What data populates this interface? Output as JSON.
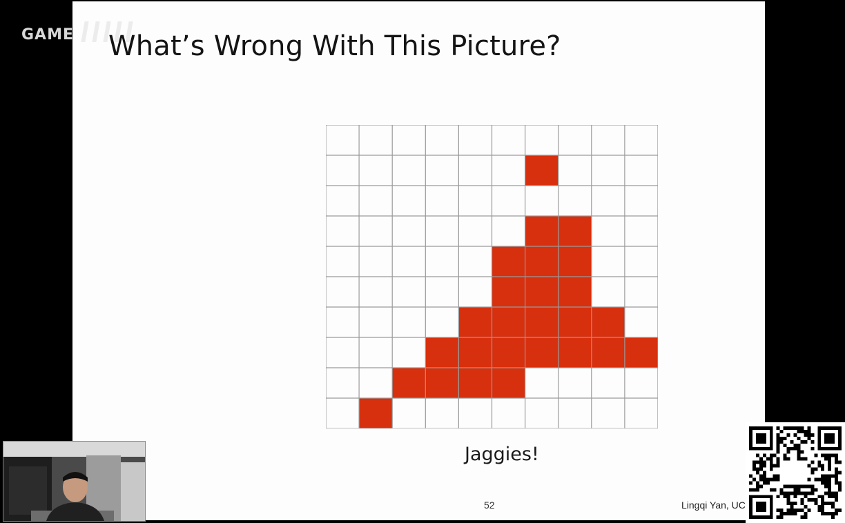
{
  "watermark": {
    "text": "GAME"
  },
  "slide": {
    "title": "What’s Wrong With This Picture?",
    "caption": "Jaggies!",
    "page_number": "52",
    "author": "Lingqi Yan, UC Santa Barbara"
  },
  "pixel_grid": {
    "columns": 10,
    "rows": 10,
    "fill_color": "#d7300f",
    "line_color": "#9a9a9a",
    "filled_cells": [
      [
        1,
        6
      ],
      [
        3,
        6
      ],
      [
        3,
        7
      ],
      [
        4,
        5
      ],
      [
        4,
        6
      ],
      [
        4,
        7
      ],
      [
        5,
        5
      ],
      [
        5,
        6
      ],
      [
        5,
        7
      ],
      [
        6,
        4
      ],
      [
        6,
        5
      ],
      [
        6,
        6
      ],
      [
        6,
        7
      ],
      [
        6,
        8
      ],
      [
        7,
        3
      ],
      [
        7,
        4
      ],
      [
        7,
        5
      ],
      [
        7,
        6
      ],
      [
        7,
        7
      ],
      [
        7,
        8
      ],
      [
        7,
        9
      ],
      [
        8,
        2
      ],
      [
        8,
        3
      ],
      [
        8,
        4
      ],
      [
        8,
        5
      ],
      [
        9,
        1
      ]
    ]
  },
  "webcam": {
    "label": "presenter-video"
  },
  "qr": {
    "label": "qr-code"
  }
}
